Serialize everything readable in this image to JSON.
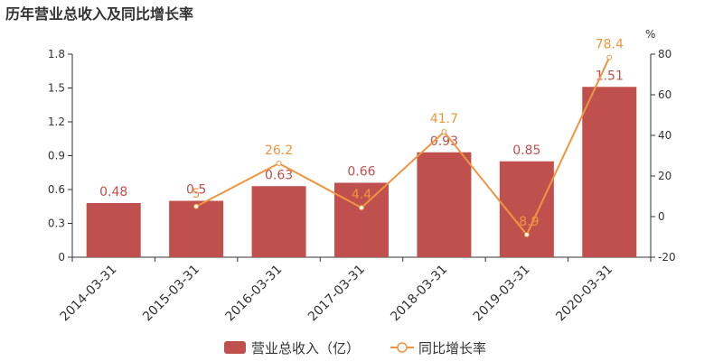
{
  "title": "历年营业总收入及同比增长率",
  "colors": {
    "bar": "#c0504d",
    "line": "#f0953f",
    "axis": "#333333"
  },
  "chart_data": {
    "type": "bar",
    "title": "历年营业总收入及同比增长率",
    "categories": [
      "2014-03-31",
      "2015-03-31",
      "2016-03-31",
      "2017-03-31",
      "2018-03-31",
      "2019-03-31",
      "2020-03-31"
    ],
    "series": [
      {
        "name": "营业总收入（亿）",
        "type": "bar",
        "axis": "left",
        "values": [
          0.48,
          0.5,
          0.63,
          0.66,
          0.93,
          0.85,
          1.51
        ],
        "labels": [
          "0.48",
          "0.5",
          "0.63",
          "0.66",
          "0.93",
          "0.85",
          "1.51"
        ]
      },
      {
        "name": "同比增长率",
        "type": "line",
        "axis": "right",
        "values": [
          null,
          5,
          26.2,
          4.4,
          41.7,
          -8.9,
          78.4
        ],
        "labels": [
          "",
          "5",
          "26.2",
          "4.4",
          "41.7",
          "-8.9",
          "78.4"
        ]
      }
    ],
    "y_left": {
      "range": [
        0,
        1.8
      ],
      "ticks": [
        "0",
        "0.3",
        "0.6",
        "0.9",
        "1.2",
        "1.5",
        "1.8"
      ]
    },
    "y_right": {
      "range": [
        -20,
        80
      ],
      "ticks": [
        "-20",
        "0",
        "20",
        "40",
        "60",
        "80"
      ],
      "unit": "%"
    },
    "grid": false,
    "legend": "bottom-center"
  }
}
